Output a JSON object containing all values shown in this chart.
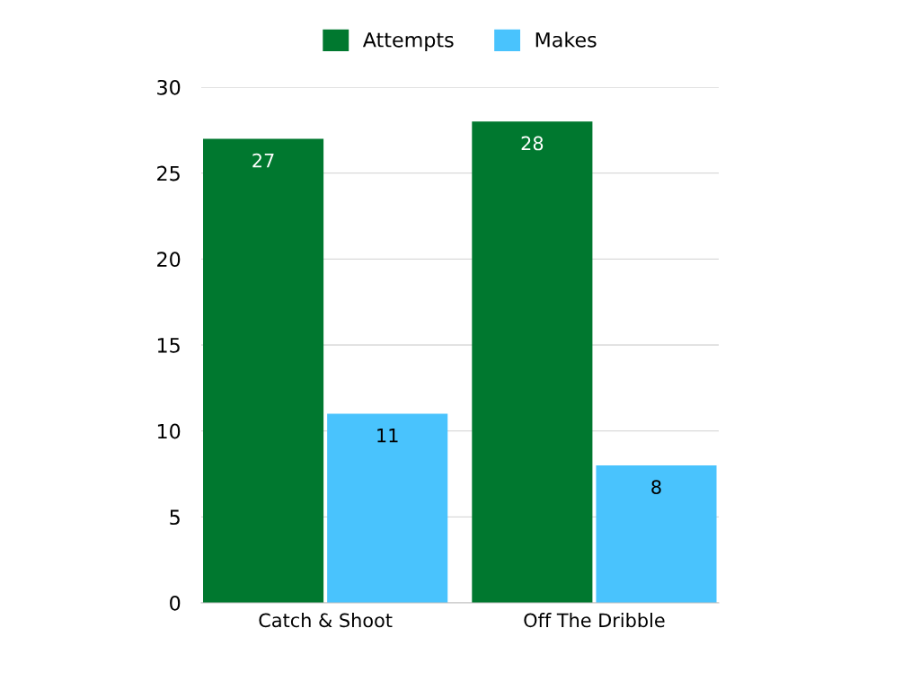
{
  "chart_data": {
    "type": "bar",
    "categories": [
      "Catch & Shoot",
      "Off The Dribble"
    ],
    "series": [
      {
        "name": "Attempts",
        "color": "#00782f",
        "values": [
          27,
          28
        ]
      },
      {
        "name": "Makes",
        "color": "#49c3fd",
        "values": [
          11,
          8
        ]
      }
    ],
    "ylim": [
      0,
      30
    ],
    "yticks": [
      0,
      5,
      10,
      15,
      20,
      25,
      30
    ],
    "grid": "y",
    "legend": "top",
    "data_labels": true
  }
}
